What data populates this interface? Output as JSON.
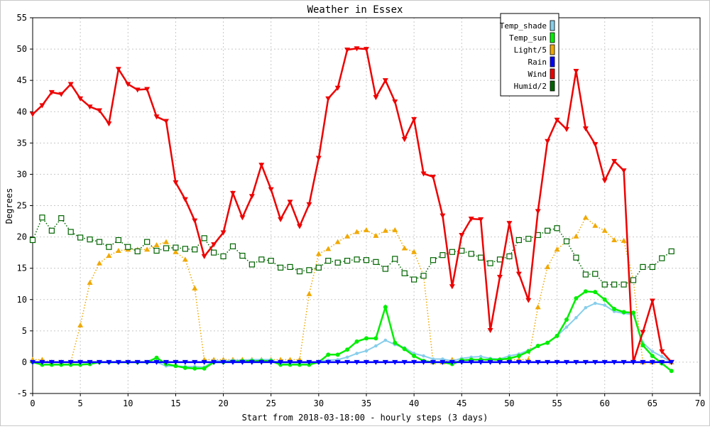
{
  "chart_data": {
    "type": "line",
    "title": "Weather in Essex",
    "xlabel": "Start from 2018-03-18:00 - hourly steps (3 days)",
    "ylabel": "Degrees",
    "xlim": [
      0,
      70
    ],
    "ylim": [
      -5,
      55
    ],
    "xticks": [
      0,
      5,
      10,
      15,
      20,
      25,
      30,
      35,
      40,
      45,
      50,
      55,
      60,
      65,
      70
    ],
    "yticks": [
      -5,
      0,
      5,
      10,
      15,
      20,
      25,
      30,
      35,
      40,
      45,
      50,
      55
    ],
    "grid": true,
    "legend_position": "top-right",
    "series": [
      {
        "name": "Temp_shade",
        "color": "#87ceeb",
        "marker": "circle-small",
        "style": "solid",
        "values": [
          0,
          0,
          0,
          0,
          0,
          0,
          0,
          0,
          0,
          0,
          0,
          0,
          0,
          0,
          -0.6,
          -0.6,
          -0.7,
          -0.7,
          -0.8,
          0.2,
          0.2,
          0.3,
          0.3,
          0.4,
          0.4,
          0.4,
          -0.3,
          -0.3,
          -0.3,
          -0.3,
          0.1,
          0.3,
          0.4,
          0.8,
          1.4,
          1.8,
          2.6,
          3.5,
          2.8,
          2.3,
          1.4,
          1.0,
          0.5,
          0.5,
          0.2,
          0.6,
          0.8,
          0.9,
          0.6,
          0.5,
          1.0,
          1.3,
          1.9,
          2.6,
          3.1,
          4.2,
          5.6,
          7.1,
          8.7,
          9.4,
          9.1,
          8.1,
          7.8,
          7.6,
          3.1,
          1.7,
          0.9,
          0
        ]
      },
      {
        "name": "Temp_sun",
        "color": "#00ee00",
        "marker": "circle",
        "style": "solid",
        "values": [
          0,
          -0.4,
          -0.4,
          -0.4,
          -0.4,
          -0.4,
          -0.3,
          0,
          0,
          0,
          0,
          0,
          0,
          0.7,
          -0.3,
          -0.6,
          -0.9,
          -1.0,
          -1.0,
          0,
          0,
          0.1,
          0.2,
          0.2,
          0.2,
          0.2,
          -0.4,
          -0.4,
          -0.4,
          -0.4,
          0,
          1.2,
          1.2,
          2.0,
          3.3,
          3.8,
          3.8,
          8.8,
          3.1,
          2.1,
          1.0,
          0.2,
          0,
          0,
          -0.3,
          0.3,
          0.4,
          0.4,
          0.4,
          0.4,
          0.6,
          1.0,
          1.7,
          2.6,
          3.1,
          4.2,
          6.8,
          10.2,
          11.3,
          11.2,
          10.0,
          8.5,
          8.0,
          7.9,
          2.7,
          1.0,
          -0.2,
          -1.4
        ]
      },
      {
        "name": "Light/5",
        "color": "#f0a800",
        "marker": "triangle-up",
        "style": "dotted",
        "values": [
          0.4,
          0.4,
          0,
          0,
          0,
          5.9,
          12.7,
          15.8,
          17.0,
          17.8,
          18.0,
          18.0,
          18.0,
          18.7,
          19.2,
          17.6,
          16.4,
          11.8,
          0.4,
          0.4,
          0.4,
          0.4,
          0.4,
          0.4,
          0.4,
          0.4,
          0.4,
          0.4,
          0.4,
          10.9,
          17.3,
          18.1,
          19.2,
          20.1,
          20.8,
          21.1,
          20.2,
          21.0,
          21.1,
          18.2,
          17.6,
          13.8,
          0,
          0,
          0.4,
          0.4,
          0.4,
          0.4,
          0.4,
          0.4,
          0.4,
          0.4,
          0.4,
          8.8,
          15.2,
          18.0,
          19.3,
          20.1,
          23.1,
          21.8,
          21.0,
          19.5,
          19.4,
          13.1,
          0,
          0,
          0,
          0
        ]
      },
      {
        "name": "Rain",
        "color": "#0000ff",
        "marker": "triangle-down",
        "style": "solid",
        "values": [
          0,
          0,
          0,
          0,
          0,
          0,
          0,
          0,
          0,
          0,
          0,
          0,
          0,
          0,
          0,
          0,
          0,
          0,
          0,
          0,
          0,
          0,
          0,
          0,
          0,
          0,
          0,
          0,
          0,
          0,
          0,
          0,
          0,
          0,
          0,
          0,
          0,
          0,
          0,
          0,
          0,
          0,
          0,
          0,
          0,
          0,
          0,
          0,
          0,
          0,
          0,
          0,
          0,
          0,
          0,
          0,
          0,
          0,
          0,
          0,
          0,
          0,
          0,
          0,
          0,
          0,
          0,
          0
        ]
      },
      {
        "name": "Wind",
        "color": "#ee0000",
        "marker": "triangle-down",
        "style": "solid",
        "values": [
          39.6,
          41.0,
          43.1,
          42.8,
          44.4,
          42.1,
          40.8,
          40.2,
          38.1,
          46.8,
          44.4,
          43.5,
          43.6,
          39.2,
          38.5,
          28.7,
          26.0,
          22.6,
          16.9,
          18.8,
          20.7,
          27.0,
          23.1,
          26.5,
          31.5,
          27.6,
          22.8,
          25.6,
          21.7,
          25.2,
          32.6,
          42.1,
          43.8,
          49.9,
          50.1,
          50.0,
          42.3,
          45.0,
          41.6,
          35.6,
          38.8,
          30.1,
          29.6,
          23.4,
          12.1,
          20.3,
          22.9,
          22.8,
          5.1,
          13.6,
          22.2,
          14.1,
          9.9,
          24.1,
          35.3,
          38.7,
          37.2,
          46.5,
          37.3,
          34.8,
          29.0,
          32.1,
          30.6,
          0,
          4.8,
          9.8,
          1.7,
          0
        ]
      },
      {
        "name": "Humid/2",
        "color": "#006400",
        "marker": "square-open",
        "style": "dotted",
        "values": [
          19.5,
          23.1,
          21.0,
          23.0,
          20.8,
          19.9,
          19.6,
          19.2,
          18.4,
          19.5,
          18.4,
          17.7,
          19.2,
          17.8,
          18.2,
          18.3,
          18.1,
          18.0,
          19.8,
          17.5,
          16.9,
          18.5,
          17.0,
          15.6,
          16.4,
          16.2,
          15.1,
          15.2,
          14.5,
          14.7,
          15.1,
          16.2,
          15.9,
          16.2,
          16.4,
          16.3,
          16.0,
          14.9,
          16.5,
          14.2,
          13.2,
          13.8,
          16.3,
          17.1,
          17.6,
          17.8,
          17.3,
          16.7,
          15.8,
          16.4,
          16.9,
          19.5,
          19.7,
          20.3,
          21.0,
          21.4,
          19.3,
          16.7,
          14.0,
          14.1,
          12.4,
          12.4,
          12.4,
          13.1,
          15.2,
          15.2,
          16.6,
          17.7
        ]
      }
    ]
  }
}
